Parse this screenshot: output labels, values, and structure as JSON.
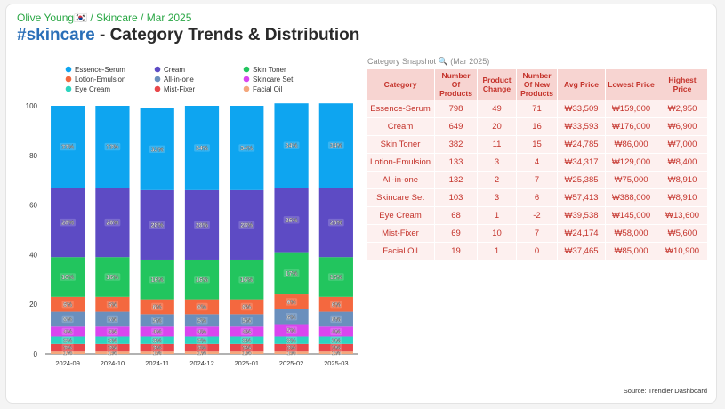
{
  "header": {
    "breadcrumb": "Olive Young🇰🇷 / Skincare / Mar 2025",
    "title_tag": "#skincare",
    "title_rest": " - Category Trends & Distribution"
  },
  "chart_data": {
    "type": "bar",
    "stacked": true,
    "categories": [
      "2024-09",
      "2024-10",
      "2024-11",
      "2024-12",
      "2025-01",
      "2025-02",
      "2025-03"
    ],
    "ylim": [
      0,
      100
    ],
    "yticks": [
      0,
      20,
      40,
      60,
      80,
      100
    ],
    "legend_position": "top",
    "series": [
      {
        "name": "Facial Oil",
        "color": "#f4a77c",
        "values": [
          1,
          1,
          1,
          1,
          1,
          1,
          1
        ]
      },
      {
        "name": "Mist-Fixer",
        "color": "#e8474a",
        "values": [
          3,
          3,
          3,
          3,
          3,
          3,
          3
        ]
      },
      {
        "name": "Eye Cream",
        "color": "#2dd4bf",
        "values": [
          3,
          3,
          3,
          3,
          3,
          3,
          3
        ]
      },
      {
        "name": "Skincare Set",
        "color": "#d946ef",
        "values": [
          4,
          4,
          4,
          4,
          4,
          5,
          4
        ]
      },
      {
        "name": "All-in-one",
        "color": "#6a8fbd",
        "values": [
          6,
          6,
          5,
          5,
          5,
          6,
          6
        ]
      },
      {
        "name": "Lotion-Emulsion",
        "color": "#f4683f",
        "values": [
          6,
          6,
          6,
          6,
          6,
          6,
          6
        ]
      },
      {
        "name": "Skin Toner",
        "color": "#22c55e",
        "values": [
          16,
          16,
          16,
          16,
          16,
          17,
          16
        ]
      },
      {
        "name": "Cream",
        "color": "#5d4bc4",
        "values": [
          28,
          28,
          28,
          28,
          28,
          26,
          28
        ]
      },
      {
        "name": "Essence-Serum",
        "color": "#0ea5f0",
        "values": [
          33,
          33,
          33,
          34,
          34,
          34,
          34
        ]
      }
    ],
    "legend": [
      "Essence-Serum",
      "Cream",
      "Skin Toner",
      "Lotion-Emulsion",
      "All-in-one",
      "Skincare Set",
      "Eye Cream",
      "Mist-Fixer",
      "Facial Oil"
    ]
  },
  "table": {
    "caption": "Category Snapshot 🔍 (Mar 2025)",
    "headers": [
      "Category",
      "Number Of Products",
      "Product Change",
      "Number Of New Products",
      "Avg Price",
      "Lowest Price",
      "Highest Price"
    ],
    "rows": [
      [
        "Essence-Serum",
        "798",
        "49",
        "71",
        "₩33,509",
        "₩159,000",
        "₩2,950"
      ],
      [
        "Cream",
        "649",
        "20",
        "16",
        "₩33,593",
        "₩176,000",
        "₩6,900"
      ],
      [
        "Skin Toner",
        "382",
        "11",
        "15",
        "₩24,785",
        "₩86,000",
        "₩7,000"
      ],
      [
        "Lotion-Emulsion",
        "133",
        "3",
        "4",
        "₩34,317",
        "₩129,000",
        "₩8,400"
      ],
      [
        "All-in-one",
        "132",
        "2",
        "7",
        "₩25,385",
        "₩75,000",
        "₩8,910"
      ],
      [
        "Skincare Set",
        "103",
        "3",
        "6",
        "₩57,413",
        "₩388,000",
        "₩8,910"
      ],
      [
        "Eye Cream",
        "68",
        "1",
        "-2",
        "₩39,538",
        "₩145,000",
        "₩13,600"
      ],
      [
        "Mist-Fixer",
        "69",
        "10",
        "7",
        "₩24,174",
        "₩58,000",
        "₩5,600"
      ],
      [
        "Facial Oil",
        "19",
        "1",
        "0",
        "₩37,465",
        "₩85,000",
        "₩10,900"
      ]
    ]
  },
  "footer": {
    "source": "Source: Trendler Dashboard"
  }
}
